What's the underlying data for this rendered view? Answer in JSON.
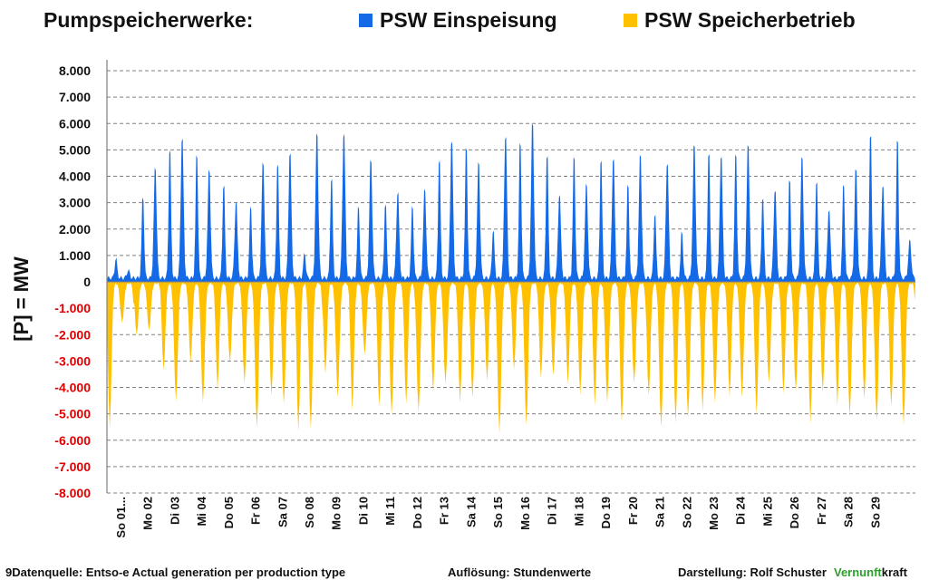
{
  "title": "Pumpspeicherwerke:",
  "legend": [
    {
      "label": "PSW Einspeisung",
      "color": "#1469e6"
    },
    {
      "label": "PSW Speicherbetrieb",
      "color": "#ffc000"
    }
  ],
  "ylabel": "[P]  = MW",
  "footer": {
    "source": "9Datenquelle: Entso-e  Actual generation per production type",
    "resolution": "Auflösung: Stundenwerte",
    "author": "Darstellung:  Rolf Schuster",
    "brand_green": "Vernunft",
    "brand_black": "kraft"
  },
  "chart_data": {
    "type": "area",
    "title": "Pumpspeicherwerke:",
    "ylabel": "[P]  = MW",
    "ylim": [
      -8000,
      8000
    ],
    "yticks": [
      8000,
      7000,
      6000,
      5000,
      4000,
      3000,
      2000,
      1000,
      0,
      -1000,
      -2000,
      -3000,
      -4000,
      -5000,
      -6000,
      -7000,
      -8000
    ],
    "ytick_labels": [
      "8.000",
      "7.000",
      "6.000",
      "5.000",
      "4.000",
      "3.000",
      "2.000",
      "1.000",
      "0",
      "-1.000",
      "-2.000",
      "-3.000",
      "-4.000",
      "-5.000",
      "-6.000",
      "-7.000",
      "-8.000"
    ],
    "x_tick_labels": [
      "So 01...",
      "Mo 02",
      "Di 03",
      "Mi 04",
      "Do 05",
      "Fr 06",
      "Sa 07",
      "So 08",
      "Mo 09",
      "Di 10",
      "Mi 11",
      "Do 12",
      "Fr 13",
      "Sa 14",
      "So 15",
      "Mo 16",
      "Di 17",
      "Mi 18",
      "Do 19",
      "Fr 20",
      "Sa 21",
      "So 22",
      "Mo 23",
      "Di 24",
      "Mi 25",
      "Do 26",
      "Fr 27",
      "Sa 28",
      "So 29"
    ],
    "grid": true,
    "legend_position": "top",
    "resolution": "hourly",
    "series": [
      {
        "name": "PSW Einspeisung",
        "color": "#1469e6",
        "daily_peaks": [
          [
            800,
            300
          ],
          [
            3400,
            4500
          ],
          [
            5400,
            5700
          ],
          [
            5200,
            4400
          ],
          [
            3900,
            3100
          ],
          [
            3000,
            4700
          ],
          [
            4800,
            5100
          ],
          [
            1000,
            5900
          ],
          [
            4200,
            5900
          ],
          [
            3000,
            4800
          ],
          [
            3100,
            3500
          ],
          [
            3000,
            3600
          ],
          [
            5000,
            5600
          ],
          [
            5500,
            4700
          ],
          [
            2000,
            5800
          ],
          [
            5700,
            6300
          ],
          [
            5200,
            3400
          ],
          [
            5100,
            3800
          ],
          [
            5000,
            4900
          ],
          [
            3900,
            5000
          ],
          [
            2700,
            4700
          ],
          [
            1900,
            5400
          ],
          [
            5300,
            5000
          ],
          [
            5200,
            5400
          ],
          [
            3400,
            3600
          ],
          [
            4100,
            4900
          ],
          [
            4100,
            2800
          ],
          [
            3900,
            4400
          ],
          [
            6100,
            3800
          ],
          [
            5800,
            1500
          ]
        ]
      },
      {
        "name": "PSW Speicherbetrieb",
        "color": "#ffc000",
        "daily_troughs": [
          [
            -1500,
            -5500
          ],
          [
            -1800,
            -2000
          ],
          [
            -4500,
            -3300
          ],
          [
            -4500,
            -3000
          ],
          [
            -3000,
            -4000
          ],
          [
            -5500,
            -3800
          ],
          [
            -4600,
            -4300
          ],
          [
            -5500,
            -5600
          ],
          [
            -4300,
            -3400
          ],
          [
            -2700,
            -4800
          ],
          [
            -5000,
            -4700
          ],
          [
            -4900,
            -4600
          ],
          [
            -3800,
            -4100
          ],
          [
            -4300,
            -4500
          ],
          [
            -5700,
            -3700
          ],
          [
            -5400,
            -3300
          ],
          [
            -3500,
            -3600
          ],
          [
            -4200,
            -3800
          ],
          [
            -4500,
            -4600
          ],
          [
            -3800,
            -5300
          ],
          [
            -5500,
            -4300
          ],
          [
            -5100,
            -5300
          ],
          [
            -4500,
            -4800
          ],
          [
            -4300,
            -4300
          ],
          [
            -3800,
            -5000
          ],
          [
            -4100,
            -4200
          ],
          [
            -4100,
            -5300
          ],
          [
            -5000,
            -4600
          ],
          [
            -5200,
            -4400
          ],
          [
            -5400,
            -4700
          ]
        ]
      }
    ]
  }
}
